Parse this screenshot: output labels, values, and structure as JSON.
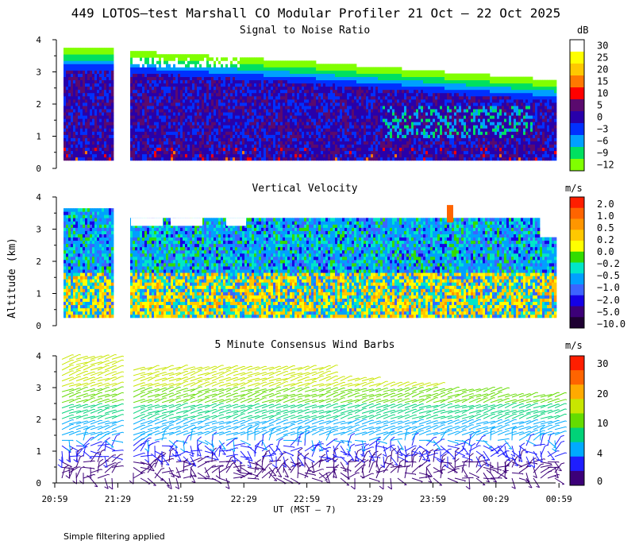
{
  "title": "449 LOTOS—test Marshall CO Modular Profiler 21 Oct — 22 Oct 2025",
  "footer_note": "Simple filtering applied",
  "ylabel": "Altitude (km)",
  "xlabel": "UT  (MST — 7)",
  "chart_data": [
    {
      "type": "heatmap",
      "title": "Signal to Noise Ratio",
      "colorbar_unit": "dB",
      "colorbar_labels": [
        "30",
        "25",
        "20",
        "15",
        "10",
        "5",
        "0",
        "−3",
        "−6",
        "−9",
        "−12"
      ],
      "colorbar_colors": [
        "#ffffff",
        "#ffff00",
        "#ffc800",
        "#ff7800",
        "#ff0000",
        "#5a0a6e",
        "#2800aa",
        "#0030ff",
        "#00a0ff",
        "#00e060",
        "#80ff00"
      ],
      "xticks": [
        "20:59",
        "21:29",
        "21:59",
        "22:29",
        "22:59",
        "23:29",
        "23:59",
        "00:29",
        "00:59"
      ],
      "yticks": [
        "0",
        "1",
        "2",
        "3",
        "4"
      ],
      "ylim": [
        0,
        4
      ],
      "data_gap": [
        "21:33",
        "21:41"
      ]
    },
    {
      "type": "heatmap",
      "title": "Vertical Velocity",
      "colorbar_unit": "m/s",
      "colorbar_labels": [
        "2.0",
        "1.0",
        "0.5",
        "0.2",
        "0.0",
        "−0.2",
        "−0.5",
        "−1.0",
        "−2.0",
        "−5.0",
        "−10.0"
      ],
      "colorbar_colors": [
        "#ff1e00",
        "#ff6400",
        "#ff9600",
        "#ffc800",
        "#ffff00",
        "#32dc00",
        "#00e6c8",
        "#00a0ff",
        "#3c64ff",
        "#1400e6",
        "#3c0078",
        "#1e0032"
      ],
      "yticks": [
        "0",
        "1",
        "2",
        "3",
        "4"
      ],
      "ylim": [
        0,
        4
      ]
    },
    {
      "type": "scatter",
      "title": "5 Minute Consensus Wind Barbs",
      "colorbar_unit": "m/s",
      "colorbar_labels": [
        "30",
        "20",
        "10",
        "4",
        "0"
      ],
      "colorbar_colors": [
        "#ff1e00",
        "#ff6400",
        "#ffaa00",
        "#c8e600",
        "#64dc00",
        "#00d278",
        "#00aaff",
        "#1e1eff",
        "#3c0078"
      ],
      "yticks": [
        "0",
        "1",
        "2",
        "3",
        "4"
      ],
      "ylim": [
        0,
        4
      ]
    }
  ]
}
